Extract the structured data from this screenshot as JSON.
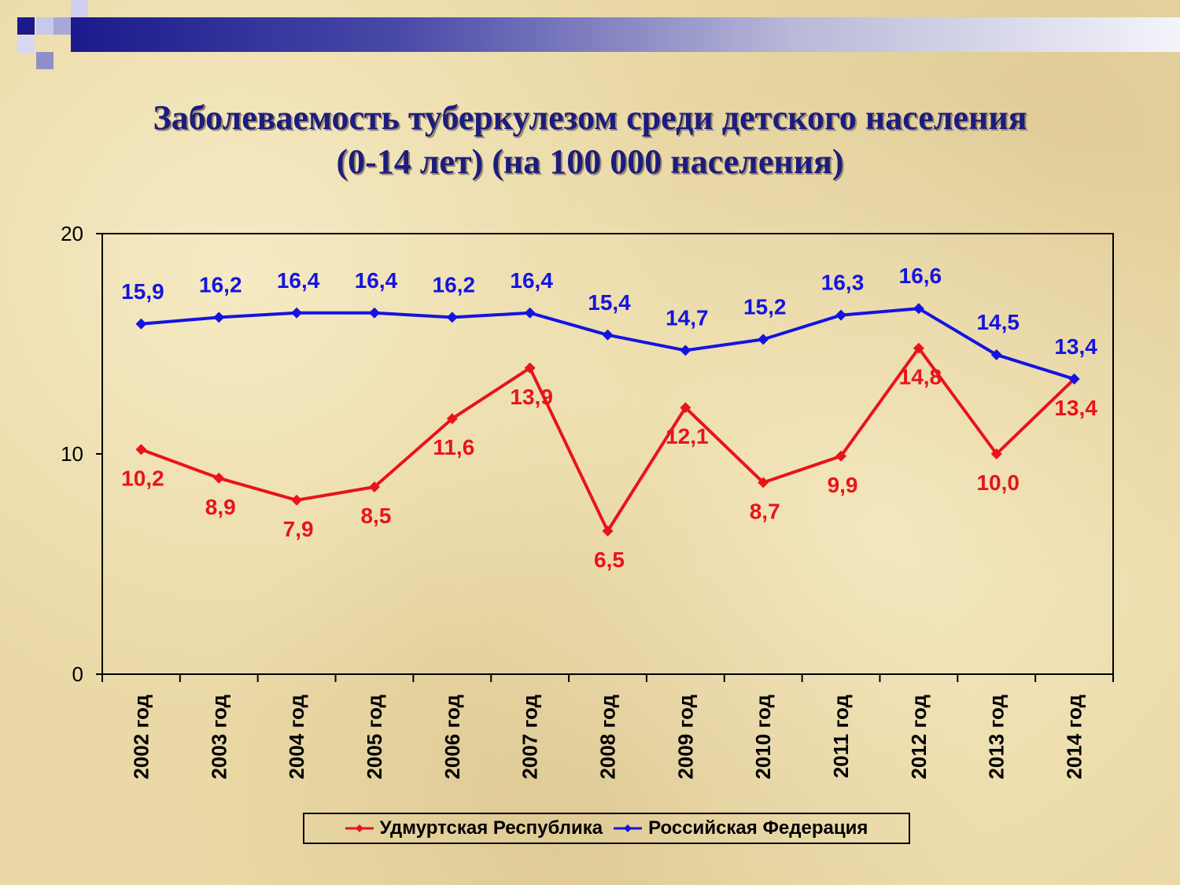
{
  "slide": {
    "title_line1": "Заболеваемость туберкулезом среди детского населения",
    "title_line2": "(0-14 лет) (на 100 000 населения)"
  },
  "chart_data": {
    "type": "line",
    "categories": [
      "2002 год",
      "2003 год",
      "2004 год",
      "2005 год",
      "2006 год",
      "2007 год",
      "2008 год",
      "2009 год",
      "2010 год",
      "2011 год",
      "2012 год",
      "2013 год",
      "2014 год"
    ],
    "series": [
      {
        "name": "Удмуртская Республика",
        "color": "#e8141a",
        "values": [
          10.2,
          8.9,
          7.9,
          8.5,
          11.6,
          13.9,
          6.5,
          12.1,
          8.7,
          9.9,
          14.8,
          10.0,
          13.4
        ],
        "labels": [
          "10,2",
          "8,9",
          "7,9",
          "8,5",
          "11,6",
          "13,9",
          "6,5",
          "12,1",
          "8,7",
          "9,9",
          "14,8",
          "10,0",
          "13,4"
        ]
      },
      {
        "name": "Российская Федерация",
        "color": "#1414e0",
        "values": [
          15.9,
          16.2,
          16.4,
          16.4,
          16.2,
          16.4,
          15.4,
          14.7,
          15.2,
          16.3,
          16.6,
          14.5,
          13.4
        ],
        "labels": [
          "15,9",
          "16,2",
          "16,4",
          "16,4",
          "16,2",
          "16,4",
          "15,4",
          "14,7",
          "15,2",
          "16,3",
          "16,6",
          "14,5",
          "13,4"
        ]
      }
    ],
    "ylim": [
      0,
      20
    ],
    "yticks": [
      0,
      10,
      20
    ],
    "ytick_labels": [
      "0",
      "10",
      "20"
    ],
    "grid": false,
    "legend_position": "bottom"
  }
}
